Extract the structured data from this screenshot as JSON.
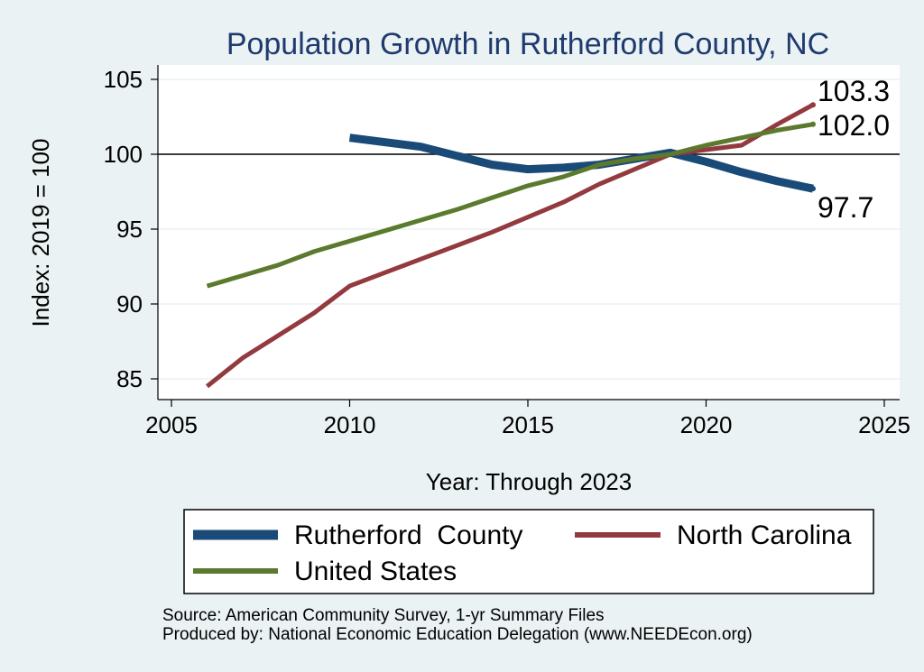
{
  "chart_data": {
    "type": "line",
    "title": "Population Growth in Rutherford County, NC",
    "xlabel": "Year: Through 2023",
    "ylabel": "Index: 2019 = 100",
    "xlim": [
      2005,
      2025
    ],
    "ylim": [
      84,
      106
    ],
    "xticks": [
      2005,
      2010,
      2015,
      2020,
      2025
    ],
    "yticks": [
      85,
      90,
      95,
      100,
      105
    ],
    "reference_line": 100,
    "series": [
      {
        "name": "Rutherford  County",
        "color": "#1a4a78",
        "x": [
          2010,
          2011,
          2012,
          2013,
          2014,
          2015,
          2016,
          2017,
          2018,
          2019,
          2020,
          2021,
          2022,
          2023
        ],
        "values": [
          101.1,
          100.8,
          100.5,
          99.9,
          99.3,
          99.0,
          99.1,
          99.3,
          99.7,
          100.1,
          99.5,
          98.8,
          98.2,
          97.7
        ],
        "end_label": "97.7"
      },
      {
        "name": "North Carolina",
        "color": "#933a3f",
        "x": [
          2006,
          2007,
          2008,
          2009,
          2010,
          2011,
          2012,
          2013,
          2014,
          2015,
          2016,
          2017,
          2018,
          2019,
          2020,
          2021,
          2022,
          2023
        ],
        "values": [
          84.5,
          86.4,
          87.9,
          89.4,
          91.2,
          92.1,
          93.0,
          93.9,
          94.8,
          95.8,
          96.8,
          98.0,
          99.0,
          100.0,
          100.3,
          100.6,
          102.0,
          103.3
        ],
        "end_label": "103.3"
      },
      {
        "name": "United States",
        "color": "#5b7a2d",
        "x": [
          2006,
          2007,
          2008,
          2009,
          2010,
          2011,
          2012,
          2013,
          2014,
          2015,
          2016,
          2017,
          2018,
          2019,
          2020,
          2021,
          2022,
          2023
        ],
        "values": [
          91.2,
          91.9,
          92.6,
          93.5,
          94.2,
          94.9,
          95.6,
          96.3,
          97.1,
          97.9,
          98.5,
          99.3,
          99.7,
          100.0,
          100.6,
          101.1,
          101.6,
          102.0
        ],
        "end_label": "102.0"
      }
    ],
    "legend_position": "bottom"
  },
  "source": {
    "line1": "Source: American Community Survey, 1-yr Summary Files",
    "line2": "Produced by: National Economic Education Delegation (www.NEEDEcon.org)"
  }
}
